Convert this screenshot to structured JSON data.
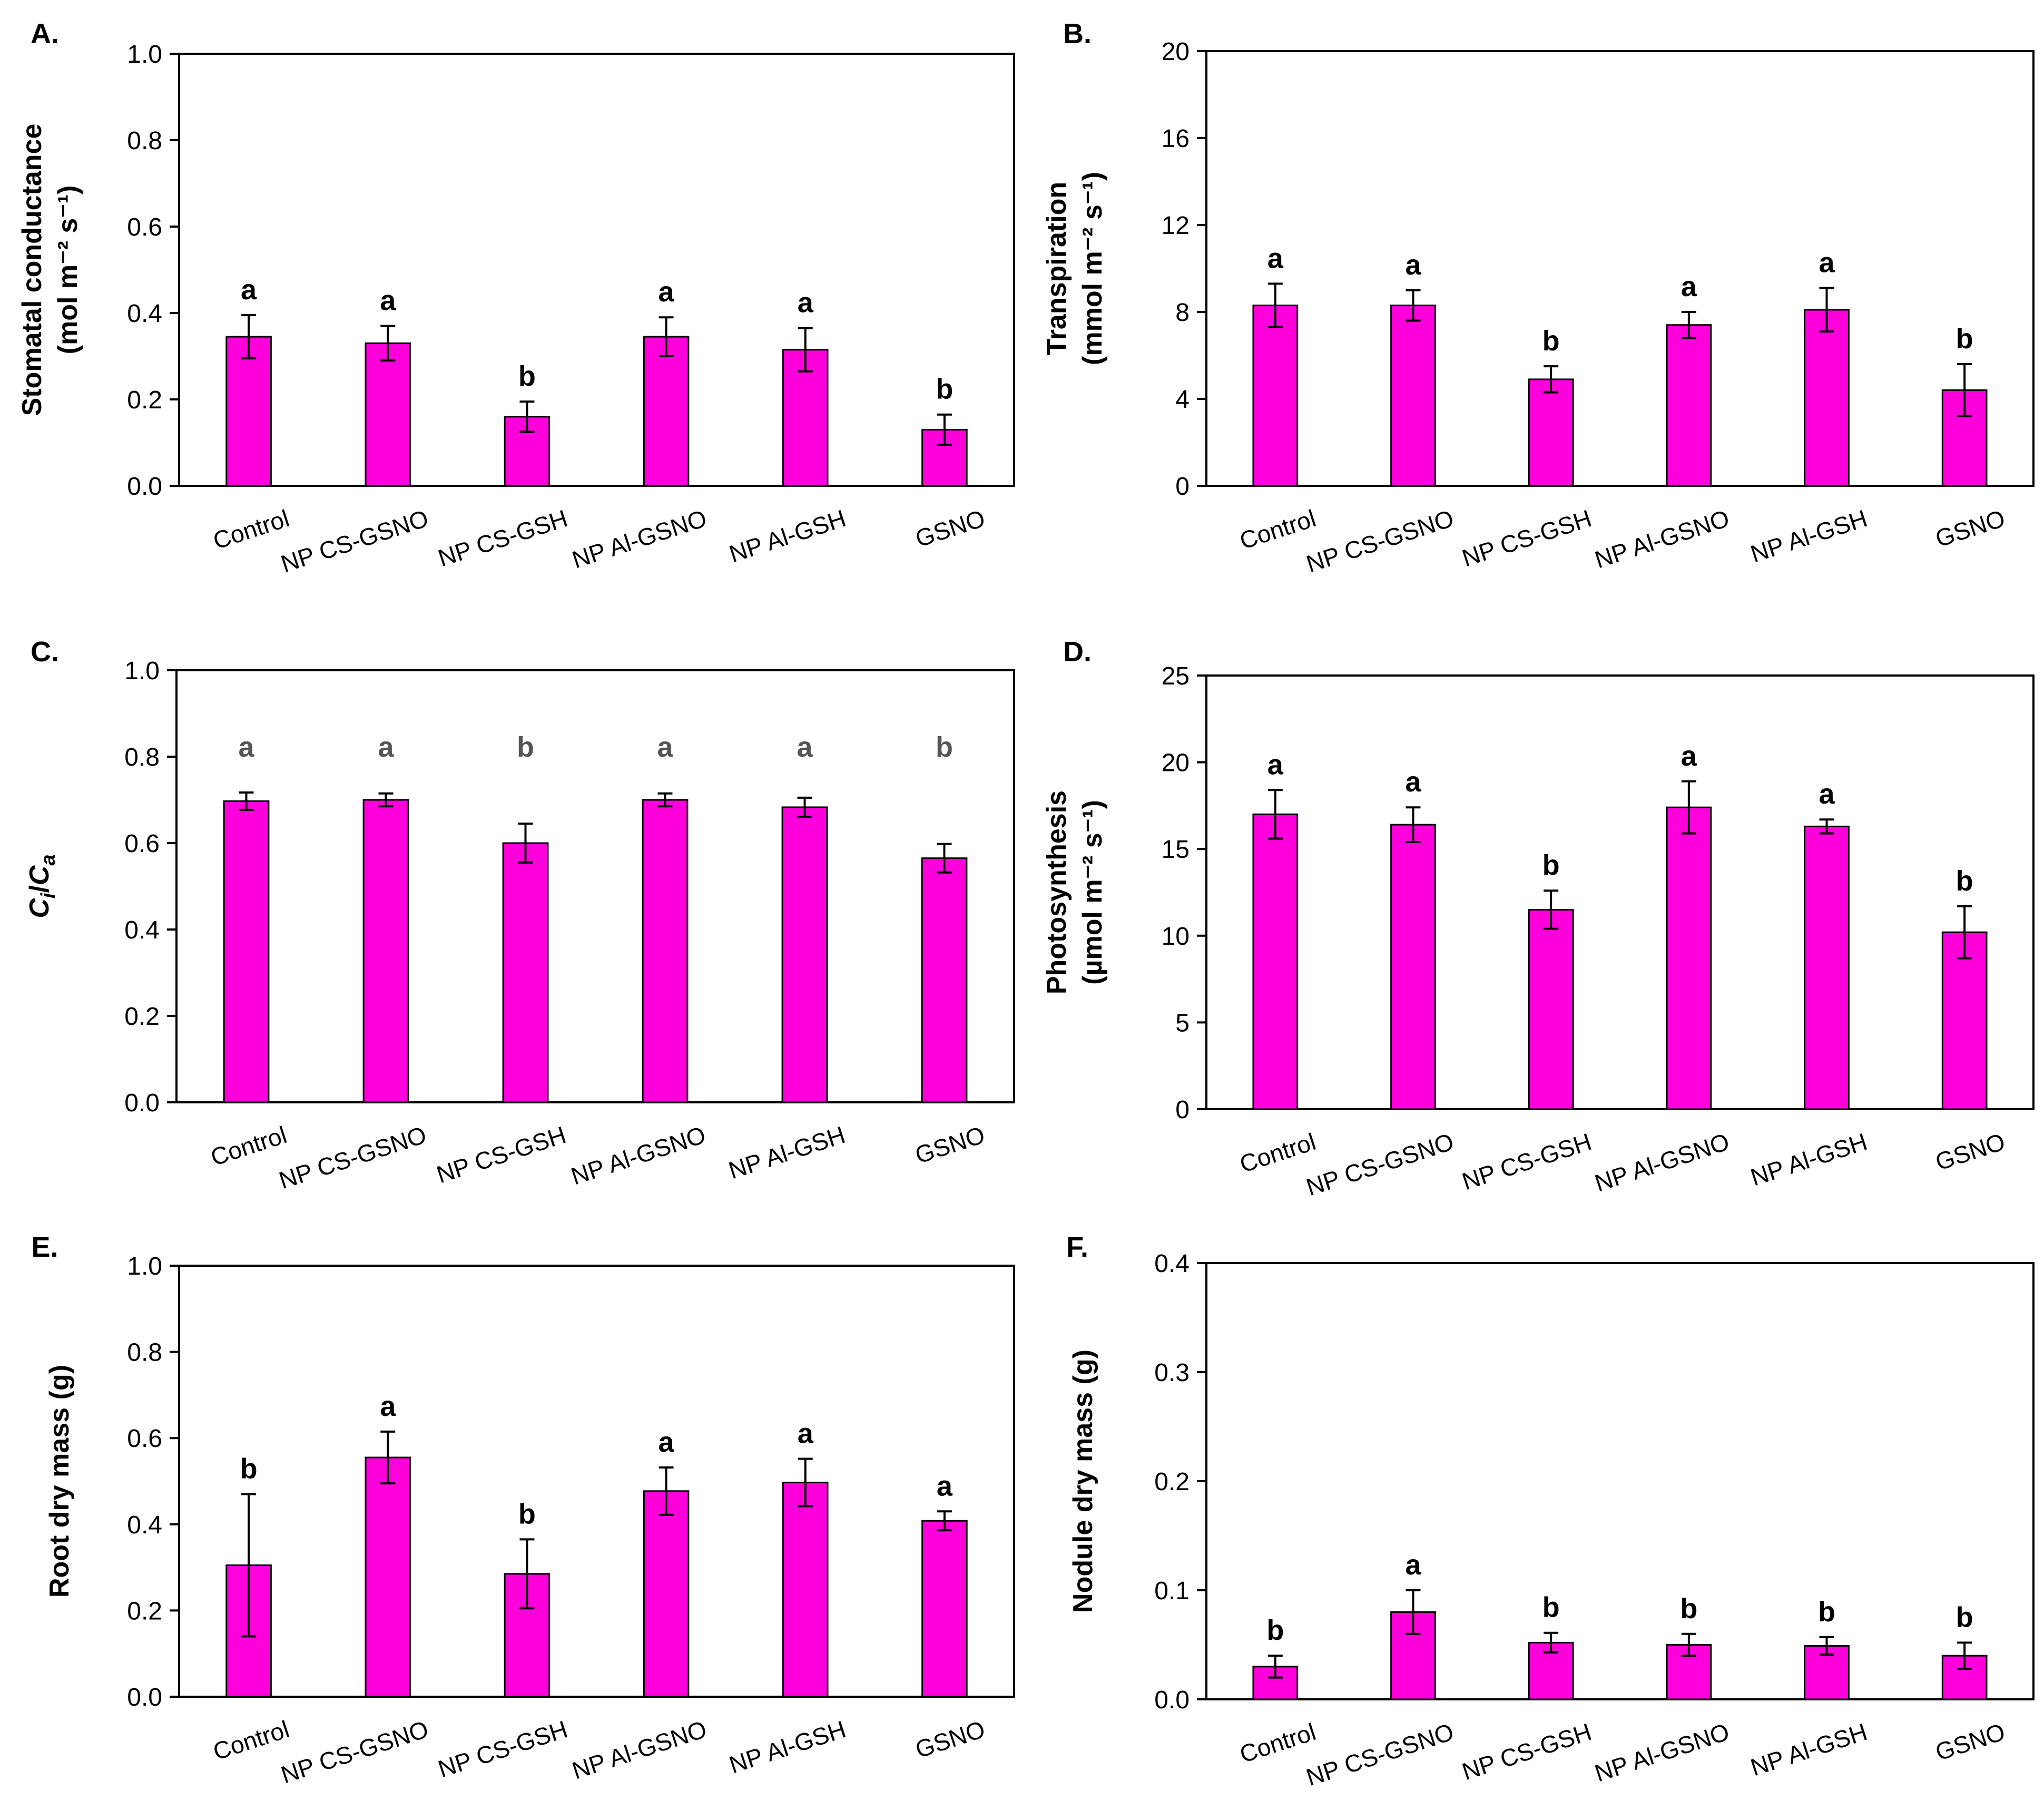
{
  "colors": {
    "bar": "#ff00dd",
    "sig_dark": "#000000",
    "sig_gray": "#555555"
  },
  "chart_data": [
    {
      "id": "A",
      "panel_label": "A.",
      "type": "bar",
      "categories": [
        "Control",
        "NP CS-GSNO",
        "NP CS-GSH",
        "NP Al-GSNO",
        "NP Al-GSH",
        "GSNO"
      ],
      "values": [
        0.345,
        0.33,
        0.16,
        0.345,
        0.315,
        0.13
      ],
      "errors": [
        0.05,
        0.04,
        0.035,
        0.045,
        0.05,
        0.035
      ],
      "letters": [
        "a",
        "a",
        "b",
        "a",
        "a",
        "b"
      ],
      "letter_style": [
        "dark",
        "dark",
        "dark",
        "dark",
        "dark",
        "dark"
      ],
      "ylabel_lines": [
        "Stomatal conductance",
        "(mol m⁻² s⁻¹)"
      ],
      "ylim": [
        0,
        1.0
      ],
      "yticks": [
        0,
        0.2,
        0.4,
        0.6,
        0.8,
        1.0
      ],
      "tick_labels": [
        "0.0",
        "0.2",
        "0.4",
        "0.6",
        "0.8",
        "1.0"
      ]
    },
    {
      "id": "B",
      "panel_label": "B.",
      "type": "bar",
      "categories": [
        "Control",
        "NP CS-GSNO",
        "NP CS-GSH",
        "NP Al-GSNO",
        "NP Al-GSH",
        "GSNO"
      ],
      "values": [
        8.3,
        8.3,
        4.9,
        7.4,
        8.1,
        4.4
      ],
      "errors": [
        1.0,
        0.7,
        0.6,
        0.6,
        1.0,
        1.2
      ],
      "letters": [
        "a",
        "a",
        "b",
        "a",
        "a",
        "b"
      ],
      "letter_style": [
        "dark",
        "dark",
        "dark",
        "dark",
        "dark",
        "dark"
      ],
      "ylabel_lines": [
        "Transpiration",
        "(mmol m⁻² s⁻¹)"
      ],
      "ylim": [
        0,
        20
      ],
      "yticks": [
        0,
        4,
        8,
        12,
        16,
        20
      ],
      "tick_labels": [
        "0",
        "4",
        "8",
        "12",
        "16",
        "20"
      ]
    },
    {
      "id": "C",
      "panel_label": "C.",
      "type": "bar",
      "categories": [
        "Control",
        "NP CS-GSNO",
        "NP CS-GSH",
        "NP Al-GSNO",
        "NP Al-GSH",
        "GSNO"
      ],
      "values": [
        0.697,
        0.7,
        0.6,
        0.7,
        0.683,
        0.565
      ],
      "errors": [
        0.02,
        0.015,
        0.045,
        0.015,
        0.022,
        0.033
      ],
      "letters": [
        "a",
        "a",
        "b",
        "a",
        "a",
        "b"
      ],
      "letter_style": [
        "gray",
        "gray",
        "gray",
        "gray",
        "gray",
        "gray"
      ],
      "ylabel_lines": [
        "Ci/Ca"
      ],
      "ylabel_rich": {
        "c1": "C",
        "s1": "i",
        "sep": "/",
        "c2": "C",
        "s2": "a"
      },
      "ylim": [
        0,
        1.0
      ],
      "yticks": [
        0,
        0.2,
        0.4,
        0.6,
        0.8,
        1.0
      ],
      "tick_labels": [
        "0.0",
        "0.2",
        "0.4",
        "0.6",
        "0.8",
        "1.0"
      ]
    },
    {
      "id": "D",
      "panel_label": "D.",
      "type": "bar",
      "categories": [
        "Control",
        "NP CS-GSNO",
        "NP CS-GSH",
        "NP Al-GSNO",
        "NP Al-GSH",
        "GSNO"
      ],
      "values": [
        17.0,
        16.4,
        11.5,
        17.4,
        16.3,
        10.2
      ],
      "errors": [
        1.4,
        1.0,
        1.1,
        1.5,
        0.4,
        1.5
      ],
      "letters": [
        "a",
        "a",
        "b",
        "a",
        "a",
        "b"
      ],
      "letter_style": [
        "dark",
        "dark",
        "dark",
        "dark",
        "dark",
        "dark"
      ],
      "ylabel_lines": [
        "Photosynthesis",
        "(µmol m⁻² s⁻¹)"
      ],
      "ylim": [
        0,
        25
      ],
      "yticks": [
        0,
        5,
        10,
        15,
        20,
        25
      ],
      "tick_labels": [
        "0",
        "5",
        "10",
        "15",
        "20",
        "25"
      ]
    },
    {
      "id": "E",
      "panel_label": "E.",
      "type": "bar",
      "categories": [
        "Control",
        "NP CS-GSNO",
        "NP CS-GSH",
        "NP Al-GSNO",
        "NP Al-GSH",
        "GSNO"
      ],
      "values": [
        0.305,
        0.555,
        0.285,
        0.477,
        0.497,
        0.408
      ],
      "errors": [
        0.165,
        0.06,
        0.08,
        0.055,
        0.055,
        0.022
      ],
      "letters": [
        "b",
        "a",
        "b",
        "a",
        "a",
        "a"
      ],
      "letter_style": [
        "dark",
        "dark",
        "dark",
        "dark",
        "dark",
        "dark"
      ],
      "ylabel_lines": [
        "Root dry mass (g)"
      ],
      "ylim": [
        0,
        1.0
      ],
      "yticks": [
        0,
        0.2,
        0.4,
        0.6,
        0.8,
        1.0
      ],
      "tick_labels": [
        "0.0",
        "0.2",
        "0.4",
        "0.6",
        "0.8",
        "1.0"
      ]
    },
    {
      "id": "F",
      "panel_label": "F.",
      "type": "bar",
      "categories": [
        "Control",
        "NP CS-GSNO",
        "NP CS-GSH",
        "NP Al-GSNO",
        "NP Al-GSH",
        "GSNO"
      ],
      "values": [
        0.03,
        0.08,
        0.052,
        0.05,
        0.049,
        0.04
      ],
      "errors": [
        0.01,
        0.02,
        0.009,
        0.01,
        0.008,
        0.012
      ],
      "letters": [
        "b",
        "a",
        "b",
        "b",
        "b",
        "b"
      ],
      "letter_style": [
        "dark",
        "dark",
        "dark",
        "dark",
        "dark",
        "dark"
      ],
      "ylabel_lines": [
        "Nodule dry mass (g)"
      ],
      "ylim": [
        0,
        0.4
      ],
      "yticks": [
        0,
        0.1,
        0.2,
        0.3,
        0.4
      ],
      "tick_labels": [
        "0.0",
        "0.1",
        "0.2",
        "0.3",
        "0.4"
      ]
    }
  ]
}
